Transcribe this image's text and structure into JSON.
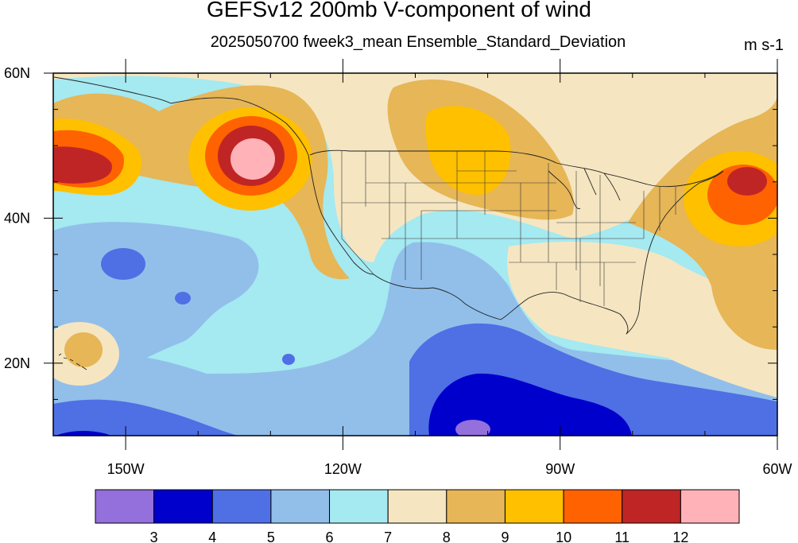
{
  "title": "GEFSv12 200mb V-component of wind",
  "subtitle": "2025050700 fweek3_mean Ensemble_Standard_Deviation",
  "units": "m s-1",
  "map": {
    "projection": "cylindrical-equidistant",
    "lon_range": [
      -160,
      -60
    ],
    "lat_range": [
      10,
      60
    ],
    "coastlines": true,
    "state_boundaries": true,
    "lat_ticks": [
      {
        "value": 60,
        "label": "60N"
      },
      {
        "value": 40,
        "label": "40N"
      },
      {
        "value": 20,
        "label": "20N"
      }
    ],
    "lon_ticks": [
      {
        "value": -150,
        "label": "150W"
      },
      {
        "value": -120,
        "label": "120W"
      },
      {
        "value": -90,
        "label": "90W"
      },
      {
        "value": -60,
        "label": "60W"
      }
    ]
  },
  "colorbar": {
    "levels": [
      "3",
      "4",
      "5",
      "6",
      "7",
      "8",
      "9",
      "10",
      "11",
      "12"
    ],
    "colors": [
      "#9370db",
      "#0000cd",
      "#4f6fe5",
      "#91bfea",
      "#a5e9f1",
      "#f5e6c1",
      "#e6b657",
      "#ffc000",
      "#ff6200",
      "#c02525",
      "#ffb2b7"
    ]
  }
}
